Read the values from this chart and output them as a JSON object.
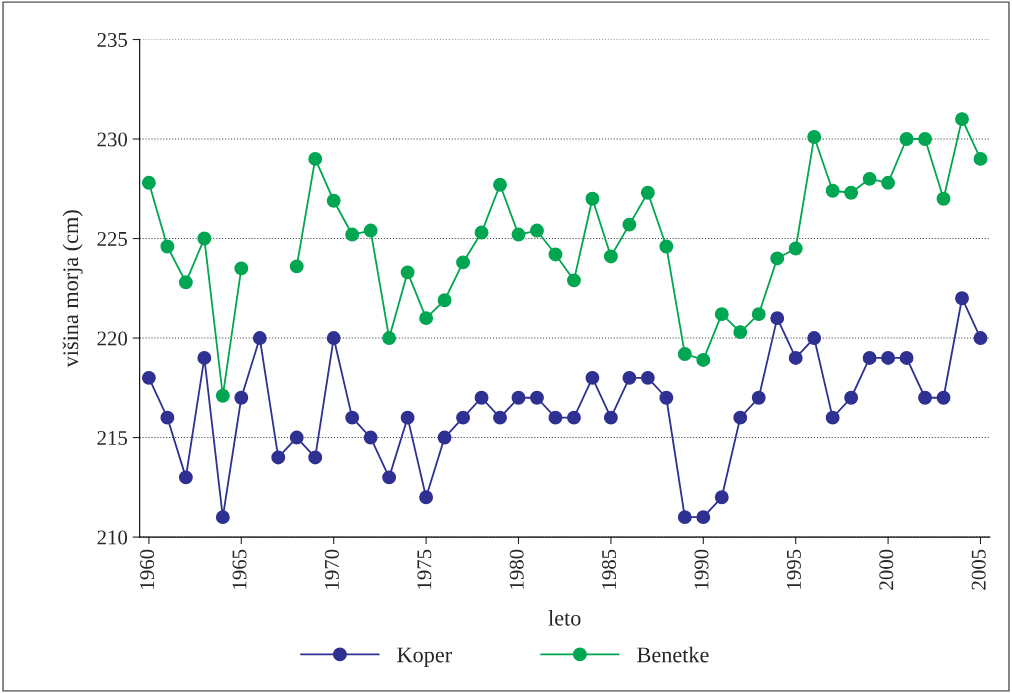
{
  "chart_data": {
    "type": "line",
    "xlabel": "leto",
    "ylabel": "višina morja (cm)",
    "x": [
      1960,
      1961,
      1962,
      1963,
      1964,
      1965,
      1966,
      1967,
      1968,
      1969,
      1970,
      1971,
      1972,
      1973,
      1974,
      1975,
      1976,
      1977,
      1978,
      1979,
      1980,
      1981,
      1982,
      1983,
      1984,
      1985,
      1986,
      1987,
      1988,
      1989,
      1990,
      1991,
      1992,
      1993,
      1994,
      1995,
      1996,
      1997,
      1998,
      1999,
      2000,
      2001,
      2002,
      2003,
      2004,
      2005
    ],
    "series": [
      {
        "name": "Koper",
        "color": "#2e3192",
        "values": [
          218,
          216,
          213,
          219,
          211,
          217,
          220,
          214,
          215,
          214,
          220,
          216,
          215,
          213,
          216,
          212,
          215,
          216,
          217,
          216,
          217,
          217,
          216,
          216,
          218,
          216,
          218,
          218,
          217,
          211,
          211,
          212,
          216,
          217,
          221,
          219,
          220,
          216,
          217,
          219,
          219,
          219,
          217,
          217,
          222,
          220
        ]
      },
      {
        "name": "Benetke",
        "color": "#00a651",
        "values": [
          227.8,
          224.6,
          222.8,
          225,
          217.1,
          223.5,
          null,
          null,
          223.6,
          229,
          226.9,
          225.2,
          225.4,
          220,
          223.3,
          221,
          221.9,
          223.8,
          225.3,
          227.7,
          225.2,
          225.4,
          224.2,
          222.9,
          227,
          224.1,
          225.7,
          227.3,
          224.6,
          219.2,
          218.9,
          221.2,
          220.3,
          221.2,
          224,
          224.5,
          230.1,
          227.4,
          227.3,
          228,
          227.8,
          230,
          230,
          227,
          231,
          229
        ]
      }
    ],
    "xlim": [
      1959.5,
      2005.5
    ],
    "xticks": [
      1960,
      1965,
      1970,
      1975,
      1980,
      1985,
      1990,
      1995,
      2000,
      2005
    ],
    "ylim": [
      210,
      235
    ],
    "yticks": [
      210,
      215,
      220,
      225,
      230,
      235
    ],
    "grid": "y",
    "legend": "bottom",
    "marker": "circle",
    "line_style": "solid"
  }
}
